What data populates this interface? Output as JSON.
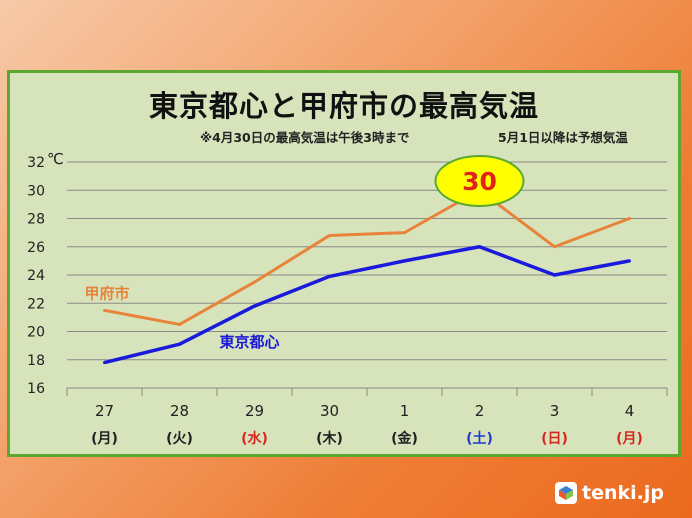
{
  "chart_data": {
    "type": "line",
    "title": "東京都心と甲府市の最高気温",
    "notes": [
      "※4月30日の最高気温は午後3時まで",
      "5月1日以降は予想気温"
    ],
    "y_unit": "℃",
    "ylim": [
      16,
      32
    ],
    "yticks": [
      16,
      18,
      20,
      22,
      24,
      26,
      28,
      30,
      32
    ],
    "grid": true,
    "categories": [
      "27",
      "28",
      "29",
      "30",
      "1",
      "2",
      "3",
      "4"
    ],
    "weekdays": [
      "(月)",
      "(火)",
      "(水)",
      "(木)",
      "(金)",
      "(土)",
      "(日)",
      "(月)"
    ],
    "weekday_colors": [
      "#222222",
      "#222222",
      "#d8281e",
      "#222222",
      "#222222",
      "#1e3cd2",
      "#d8281e",
      "#d8281e"
    ],
    "series": [
      {
        "name": "甲府市",
        "color": "#e8843a",
        "values": [
          21.5,
          20.5,
          23.5,
          26.8,
          27.0,
          30.0,
          26.0,
          28.0
        ]
      },
      {
        "name": "東京都心",
        "color": "#1a1adc",
        "values": [
          17.8,
          19.1,
          21.8,
          23.9,
          25.0,
          26.0,
          24.0,
          25.0
        ]
      }
    ],
    "callout": {
      "label": "30",
      "series": "甲府市",
      "category": "2",
      "color": "#e0241a",
      "fill": "#ffff00"
    }
  },
  "branding": {
    "logo_text": "tenki.jp"
  }
}
